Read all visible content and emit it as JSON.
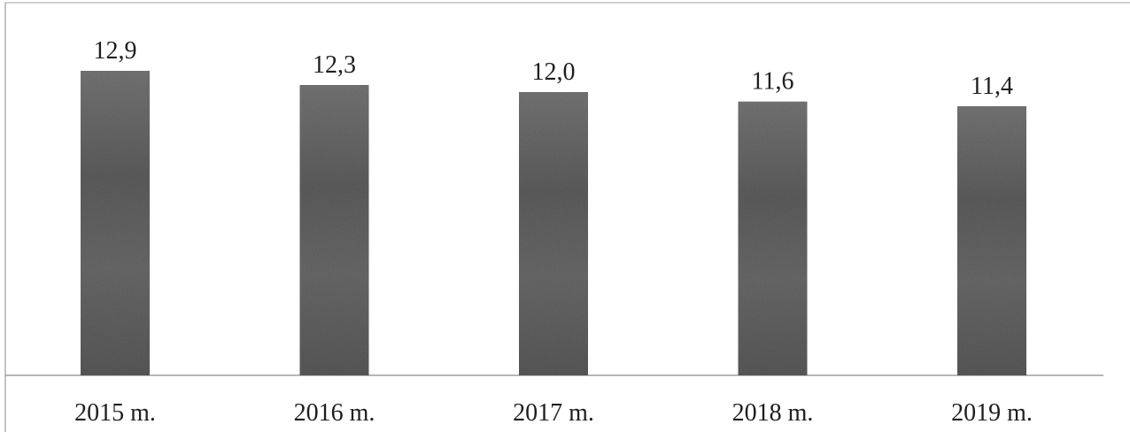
{
  "chart_data": {
    "type": "bar",
    "categories": [
      "2015 m.",
      "2016 m.",
      "2017 m.",
      "2018 m.",
      "2019 m."
    ],
    "values": [
      12.9,
      12.3,
      12.0,
      11.6,
      11.4
    ],
    "value_labels": [
      "12,9",
      "12,3",
      "12,0",
      "11,6",
      "11,4"
    ],
    "title": "",
    "xlabel": "",
    "ylabel": "",
    "ylim": [
      0,
      15
    ],
    "grid": false,
    "legend": "none",
    "colors": {
      "bar": "#6f6f6f",
      "bar_dark": "#4a4a4a",
      "axis": "#8a8a8a",
      "frame": "#9a9a9a",
      "text": "#1e1e1e"
    }
  }
}
